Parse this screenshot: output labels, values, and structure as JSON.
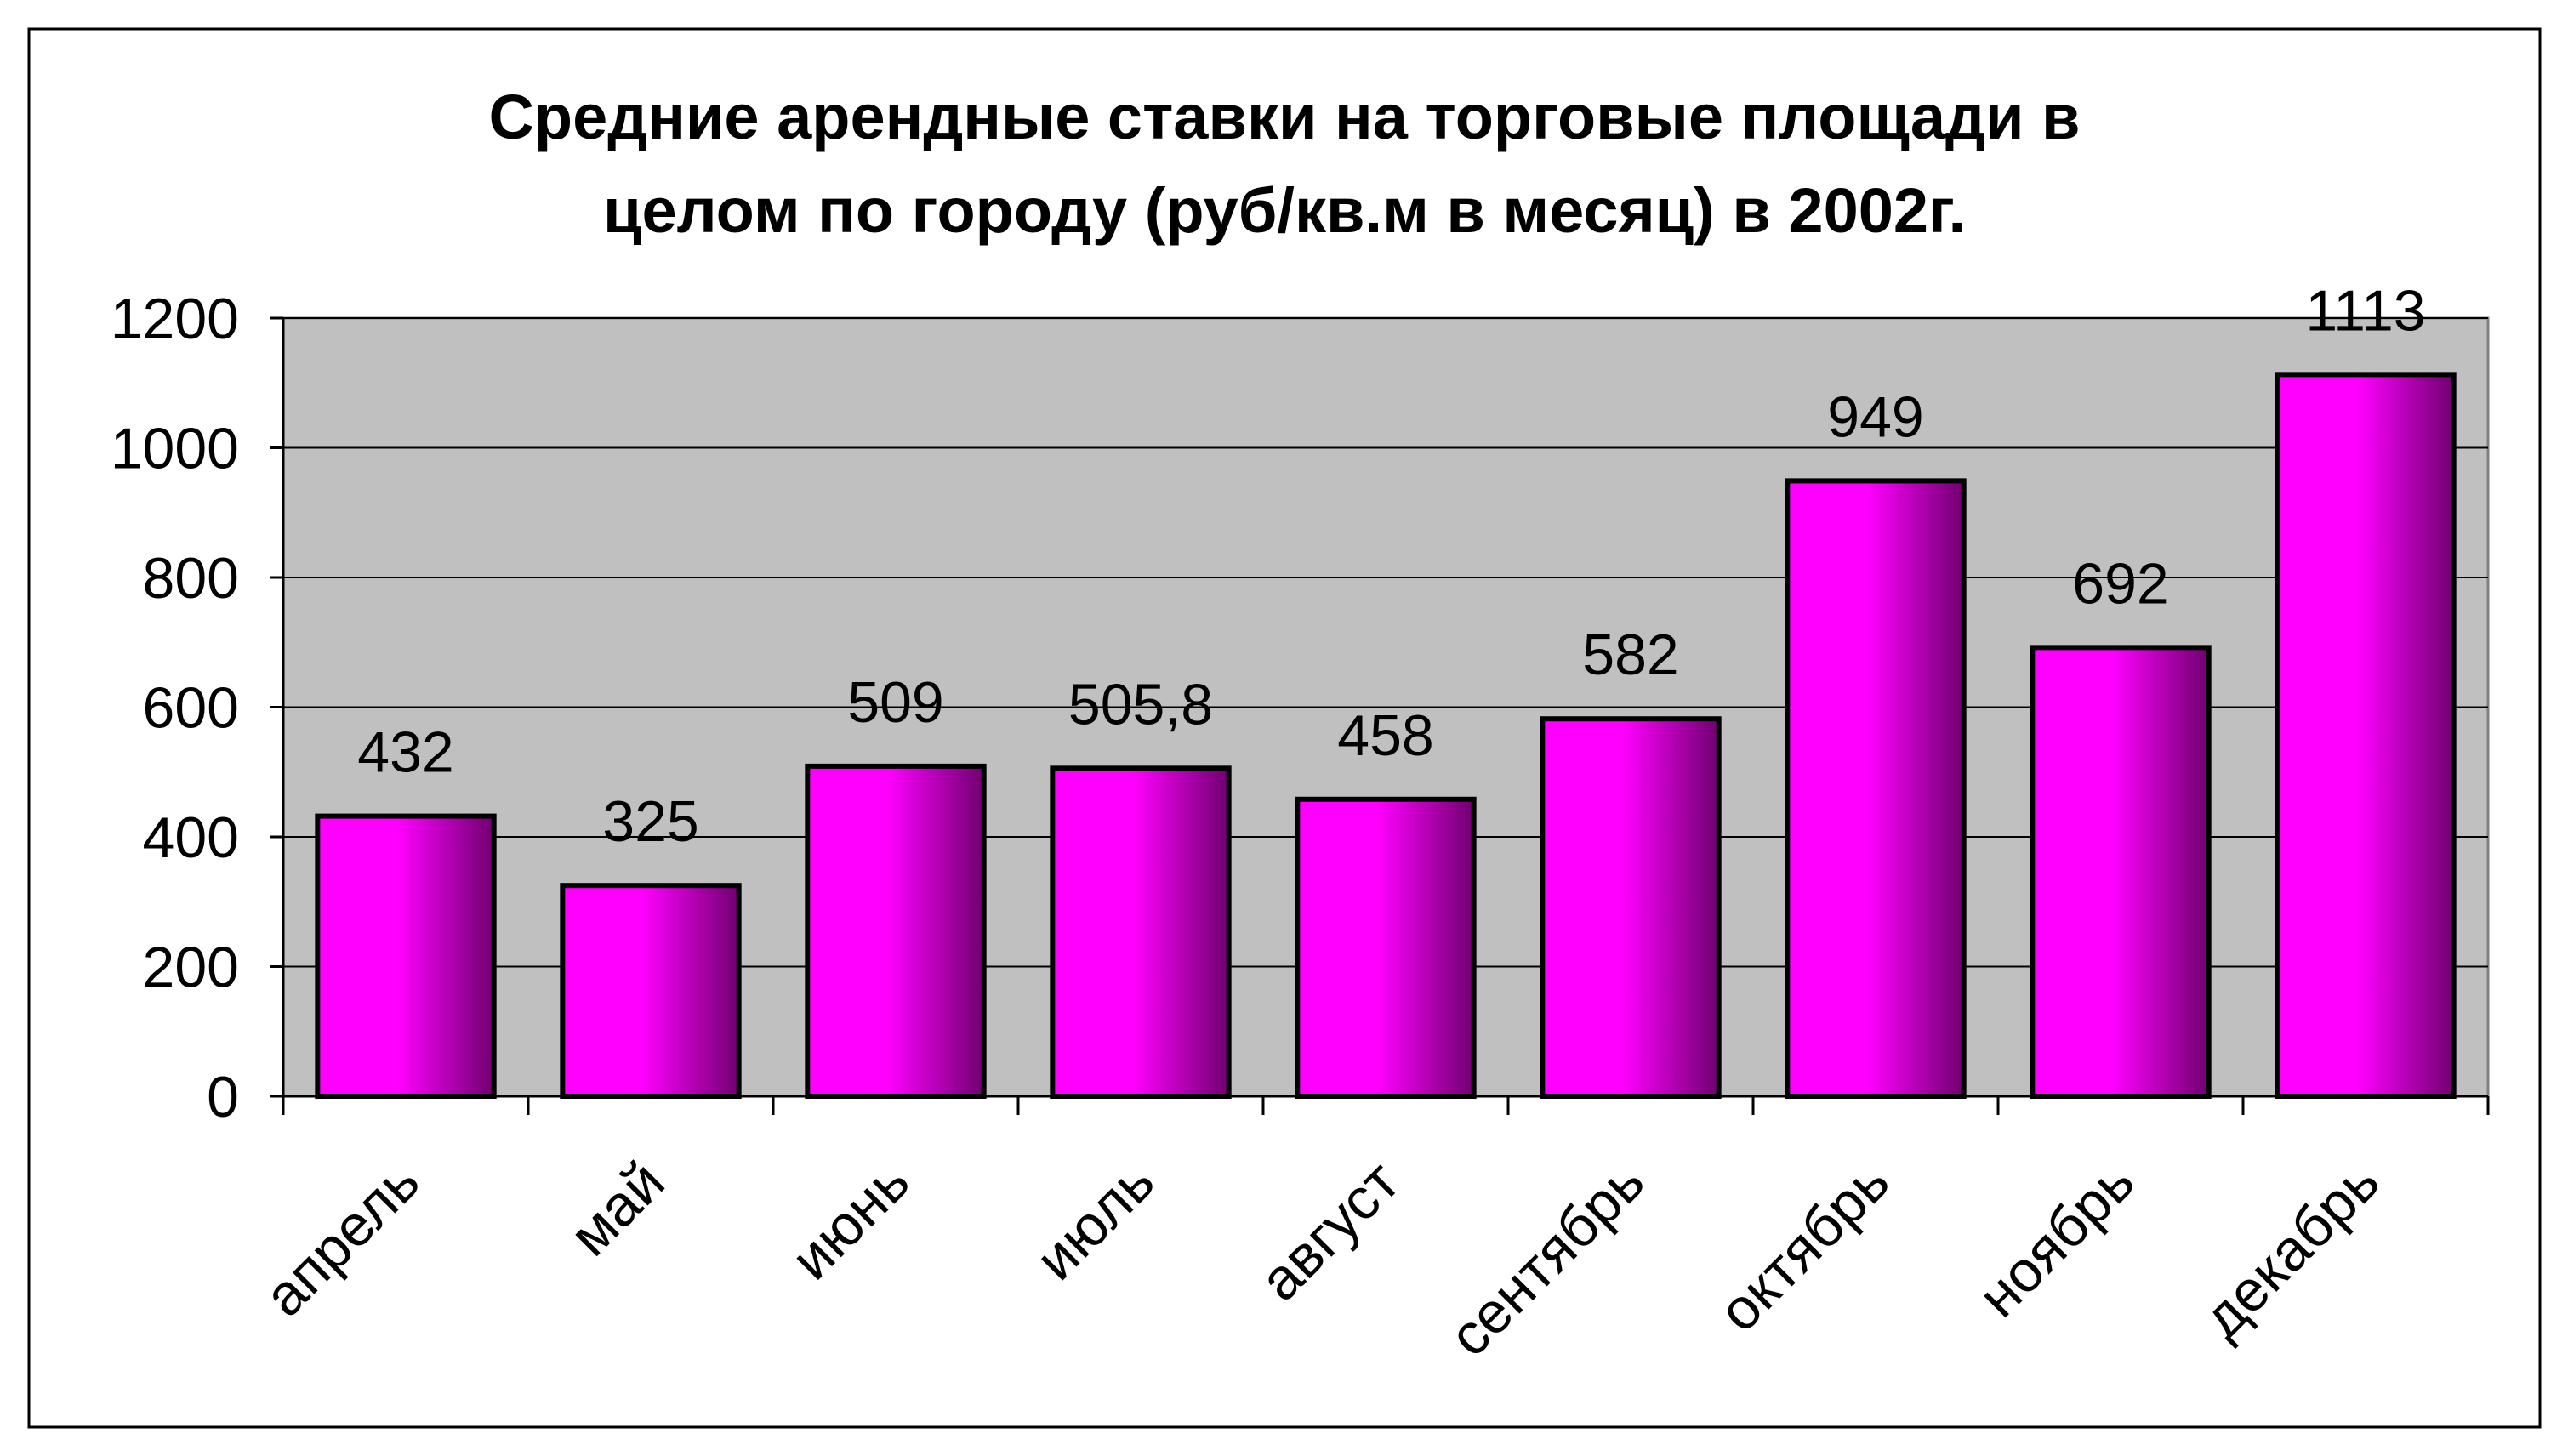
{
  "chart_data": {
    "type": "bar",
    "title_lines": [
      "Средние арендные ставки на торговые площади в",
      "целом по городу (руб/кв.м в месяц) в 2002г."
    ],
    "categories": [
      "апрель",
      "май",
      "июнь",
      "июль",
      "август",
      "сентябрь",
      "октябрь",
      "ноябрь",
      "декабрь"
    ],
    "values": [
      432,
      325,
      509,
      505.8,
      458,
      582,
      949,
      692,
      1113
    ],
    "value_labels": [
      "432",
      "325",
      "509",
      "505,8",
      "458",
      "582",
      "949",
      "692",
      "1113"
    ],
    "xlabel": "",
    "ylabel": "",
    "ylim": [
      0,
      1200
    ],
    "yticks": [
      0,
      200,
      400,
      600,
      800,
      1000,
      1200
    ],
    "grid": true,
    "legend": "none",
    "colors": {
      "bar_fill_light": "#ff00ff",
      "bar_fill_dark": "#6f006f",
      "bar_outline": "#000000",
      "plot_background": "#c0c0c0",
      "gridline": "#000000",
      "page_border": "#000000"
    }
  }
}
